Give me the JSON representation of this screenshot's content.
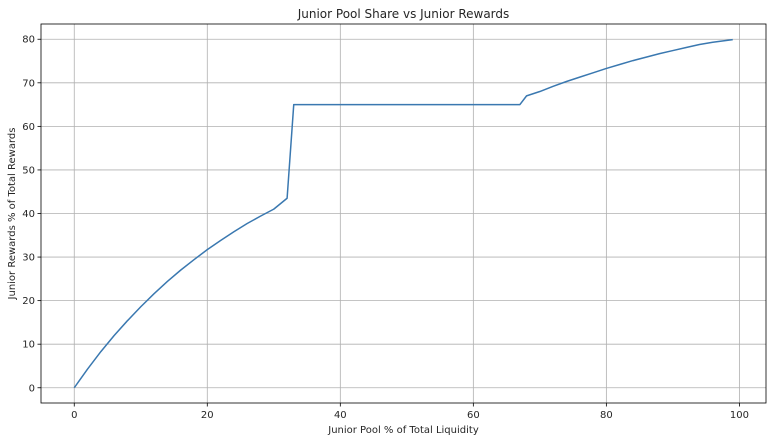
{
  "chart_data": {
    "type": "line",
    "title": "Junior Pool Share vs Junior Rewards",
    "xlabel": "Junior Pool % of Total Liquidity",
    "ylabel": "Junior Rewards % of Total Rewards",
    "xlim": [
      -5,
      104
    ],
    "ylim": [
      -3.5,
      83.5
    ],
    "x_ticks": [
      0,
      20,
      40,
      60,
      80,
      100
    ],
    "y_ticks": [
      0,
      10,
      20,
      30,
      40,
      50,
      60,
      70,
      80
    ],
    "grid": true,
    "legend": "none",
    "series": [
      {
        "color": "#3a78b0",
        "x": [
          0,
          2,
          4,
          6,
          8,
          10,
          12,
          14,
          16,
          18,
          20,
          22,
          24,
          26,
          28,
          30,
          32,
          33,
          35,
          40,
          45,
          50,
          55,
          60,
          65,
          67,
          68,
          70,
          72,
          74,
          76,
          78,
          80,
          82,
          84,
          86,
          88,
          90,
          92,
          94,
          96,
          99
        ],
        "y": [
          0,
          4.3,
          8.3,
          12.0,
          15.4,
          18.6,
          21.6,
          24.4,
          27.0,
          29.4,
          31.7,
          33.8,
          35.8,
          37.7,
          39.4,
          41.0,
          43.5,
          65,
          65,
          65,
          65,
          65,
          65,
          65,
          65,
          65,
          67.0,
          68.0,
          69.2,
          70.3,
          71.3,
          72.3,
          73.3,
          74.2,
          75.1,
          75.9,
          76.7,
          77.4,
          78.1,
          78.8,
          79.3,
          79.9
        ]
      }
    ]
  }
}
